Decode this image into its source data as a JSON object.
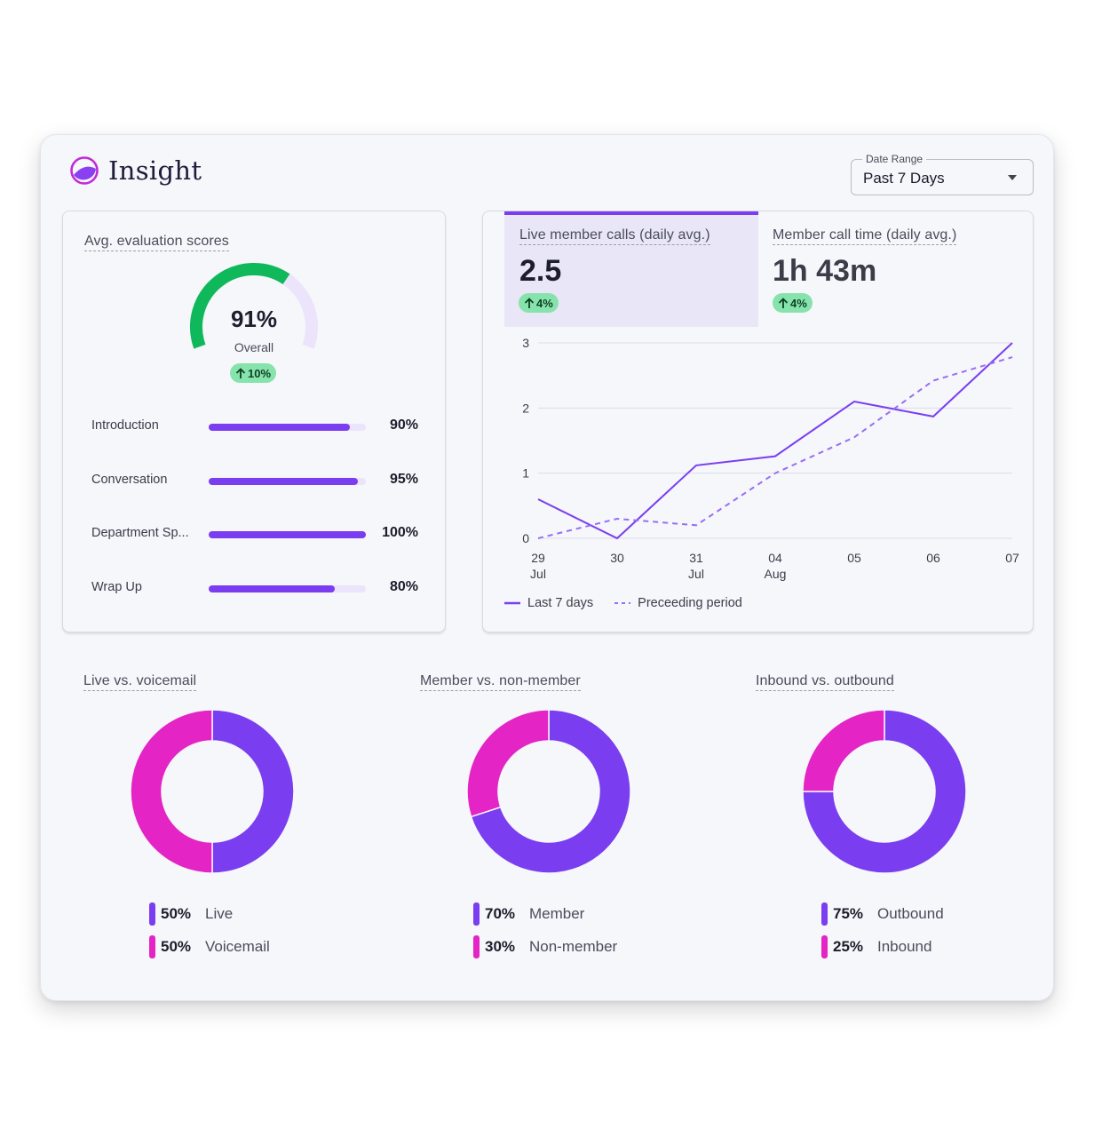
{
  "app": {
    "title": "Insight"
  },
  "date_range": {
    "label": "Date Range",
    "value": "Past 7 Days"
  },
  "colors": {
    "purple": "#7a3ef0",
    "magenta": "#e424c4",
    "green": "#0fb85a",
    "badge_green": "#86e3ab"
  },
  "evaluation": {
    "title": "Avg. evaluation scores",
    "overall_percent": 91,
    "overall_value": "91%",
    "overall_label": "Overall",
    "overall_change": "10%",
    "scores": [
      {
        "label": "Introduction",
        "value": "90%",
        "percent": 90
      },
      {
        "label": "Conversation",
        "value": "95%",
        "percent": 95
      },
      {
        "label": "Department Sp...",
        "value": "100%",
        "percent": 100
      },
      {
        "label": "Wrap Up",
        "value": "80%",
        "percent": 80
      }
    ]
  },
  "calls": {
    "tabs": [
      {
        "title": "Live member calls (daily avg.)",
        "value": "2.5",
        "change": "4%"
      },
      {
        "title": "Member call time (daily avg.)",
        "value": "1h 43m",
        "change": "4%"
      }
    ],
    "legend": {
      "current": "Last 7 days",
      "previous": "Preceeding period"
    }
  },
  "chart_data": {
    "type": "line",
    "x": [
      "29 Jul",
      "30",
      "31 Jul",
      "04 Aug",
      "05",
      "06",
      "07"
    ],
    "x_ticks": [
      {
        "line1": "29",
        "line2": "Jul"
      },
      {
        "line1": "30",
        "line2": ""
      },
      {
        "line1": "31",
        "line2": "Jul"
      },
      {
        "line1": "04",
        "line2": "Aug"
      },
      {
        "line1": "05",
        "line2": ""
      },
      {
        "line1": "06",
        "line2": ""
      },
      {
        "line1": "07",
        "line2": ""
      }
    ],
    "y_ticks": [
      "0",
      "1",
      "2",
      "3"
    ],
    "ylim": [
      0,
      3
    ],
    "grid": true,
    "series": [
      {
        "name": "Last 7 days",
        "style": "solid",
        "values": [
          0.6,
          0.0,
          1.12,
          1.26,
          2.1,
          1.87,
          3.0
        ]
      },
      {
        "name": "Preceeding period",
        "style": "dashed",
        "values": [
          0.0,
          0.3,
          0.2,
          1.0,
          1.55,
          2.42,
          2.78
        ]
      }
    ]
  },
  "donuts": [
    {
      "title": "Live vs. voicemail",
      "segments": [
        {
          "label": "Live",
          "pct_text": "50%",
          "value": 50,
          "color": "#7a3ef0"
        },
        {
          "label": "Voicemail",
          "pct_text": "50%",
          "value": 50,
          "color": "#e424c4"
        }
      ]
    },
    {
      "title": "Member vs. non-member",
      "segments": [
        {
          "label": "Member",
          "pct_text": "70%",
          "value": 70,
          "color": "#7a3ef0"
        },
        {
          "label": "Non-member",
          "pct_text": "30%",
          "value": 30,
          "color": "#e424c4"
        }
      ]
    },
    {
      "title": "Inbound vs. outbound",
      "segments": [
        {
          "label": "Outbound",
          "pct_text": "75%",
          "value": 75,
          "color": "#7a3ef0"
        },
        {
          "label": "Inbound",
          "pct_text": "25%",
          "value": 25,
          "color": "#e424c4"
        }
      ]
    }
  ]
}
